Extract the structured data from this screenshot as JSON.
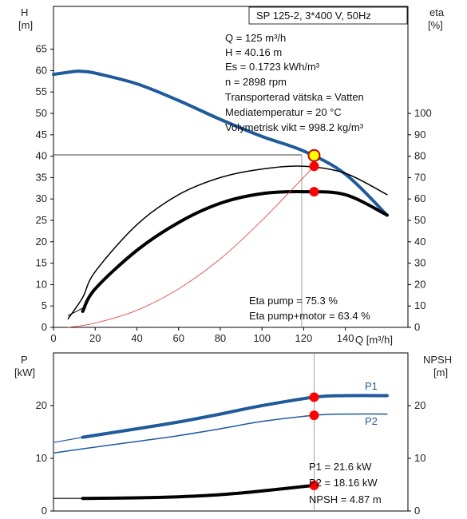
{
  "chart_data": [
    {
      "type": "line",
      "title": "SP 125-2, 3*400 V, 50Hz",
      "xlabel": "Q [m³/h]",
      "ylabel": "H",
      "ylabel_unit": "[m]",
      "ylabel_right": "eta",
      "ylabel_right_unit": "[%]",
      "xlim": [
        0,
        170
      ],
      "ylim": [
        0,
        75
      ],
      "ylim_right": [
        0,
        150
      ],
      "x_ticks": [
        "0",
        "20",
        "40",
        "60",
        "80",
        "100",
        "120",
        "140"
      ],
      "y_ticks": [
        "0",
        "5",
        "10",
        "15",
        "20",
        "25",
        "30",
        "35",
        "40",
        "45",
        "50",
        "55",
        "60",
        "65"
      ],
      "y_right_ticks": [
        "0",
        "10",
        "20",
        "30",
        "40",
        "50",
        "60",
        "70",
        "80",
        "90",
        "100"
      ],
      "grid": false,
      "info": [
        "Q = 125 m³/h",
        "H = 40.16 m",
        "Es = 0.1723 kWh/m³",
        "n = 2898 rpm",
        "Transporterad vätska = Vatten",
        "Mediatemperatur = 20 °C",
        "Volymetrisk vikt = 998.2 kg/m³"
      ],
      "info_bottom": [
        "Eta pump = 75.3 %",
        "Eta pump+motor = 63.4 %"
      ],
      "duty_point": {
        "x": 125,
        "y": 40.16
      },
      "series": [
        {
          "axis": "left",
          "color": "#1f5a9a",
          "width": 4,
          "x": [
            0,
            10,
            14,
            20,
            40,
            60,
            80,
            100,
            120,
            140,
            160
          ],
          "y": [
            59.1,
            59.8,
            59.8,
            59.4,
            56.9,
            53.0,
            48.6,
            44.6,
            41.2,
            35.8,
            26.2
          ]
        },
        {
          "axis": "left",
          "color": "#1f5a9a",
          "width": 1.5,
          "x": [
            0,
            10
          ],
          "y": [
            59.0,
            59.8
          ]
        },
        {
          "axis": "right",
          "color": "#000000",
          "width": 1.5,
          "x": [
            7,
            14,
            20,
            40,
            60,
            80,
            100,
            120,
            140,
            160
          ],
          "y": [
            4,
            14,
            26,
            48,
            62,
            70,
            74,
            75.3,
            72,
            62
          ]
        },
        {
          "axis": "right",
          "color": "#000000",
          "width": 4,
          "x": [
            14,
            20,
            40,
            60,
            80,
            100,
            120,
            140,
            160
          ],
          "y": [
            7.5,
            18,
            36,
            49,
            58,
            62.5,
            63.4,
            62,
            52.5
          ]
        },
        {
          "axis": "right",
          "color": "#000000",
          "width": 1,
          "x": [
            7,
            14
          ],
          "y": [
            5.5,
            9
          ]
        },
        {
          "axis": "right",
          "color": "#e03030",
          "width": 0.8,
          "x": [
            7,
            20,
            40,
            60,
            80,
            100,
            125
          ],
          "y": [
            0,
            2,
            8,
            18,
            32,
            50,
            75.3
          ]
        }
      ],
      "markers": [
        {
          "axis": "right",
          "x": 125,
          "y": 75.3
        },
        {
          "axis": "right",
          "x": 125,
          "y": 63.4
        }
      ]
    },
    {
      "type": "line",
      "ylabel": "P",
      "ylabel_unit": "[kW]",
      "ylabel_right": "NPSH",
      "ylabel_right_unit": "[m]",
      "xlim": [
        0,
        170
      ],
      "ylim": [
        0,
        30
      ],
      "ylim_right": [
        0,
        30
      ],
      "y_ticks": [
        "0",
        "10",
        "20"
      ],
      "y_right_ticks": [
        "0",
        "10",
        "20"
      ],
      "grid": false,
      "info": [
        "P1 = 21.6 kW",
        "P2 = 18.16 kW",
        "NPSH = 4.87 m"
      ],
      "series": [
        {
          "name": "P1",
          "axis": "left",
          "color": "#1f5a9a",
          "width": 4,
          "x": [
            14,
            40,
            60,
            80,
            100,
            125,
            140,
            160
          ],
          "y": [
            14.0,
            15.6,
            16.9,
            18.4,
            20.0,
            21.6,
            21.9,
            21.9
          ]
        },
        {
          "name": "",
          "axis": "left",
          "color": "#1f5a9a",
          "width": 1.2,
          "x": [
            0,
            14
          ],
          "y": [
            13.0,
            14.0
          ]
        },
        {
          "name": "P2",
          "axis": "left",
          "color": "#1f5a9a",
          "width": 1.5,
          "x": [
            0,
            14,
            40,
            60,
            80,
            100,
            125,
            140,
            160
          ],
          "y": [
            11.0,
            11.8,
            13.2,
            14.3,
            15.6,
            17.0,
            18.16,
            18.4,
            18.4
          ]
        },
        {
          "name": "",
          "axis": "right",
          "color": "#000000",
          "width": 4,
          "x": [
            14,
            40,
            60,
            80,
            100,
            125
          ],
          "y": [
            2.4,
            2.5,
            2.7,
            3.1,
            3.8,
            4.87
          ]
        },
        {
          "name": "",
          "axis": "right",
          "color": "#000000",
          "width": 1.2,
          "x": [
            0,
            14
          ],
          "y": [
            2.4,
            2.4
          ]
        }
      ],
      "markers": [
        {
          "axis": "left",
          "x": 125,
          "y": 21.6
        },
        {
          "axis": "left",
          "x": 125,
          "y": 18.16
        },
        {
          "axis": "right",
          "x": 125,
          "y": 4.87
        }
      ]
    }
  ]
}
